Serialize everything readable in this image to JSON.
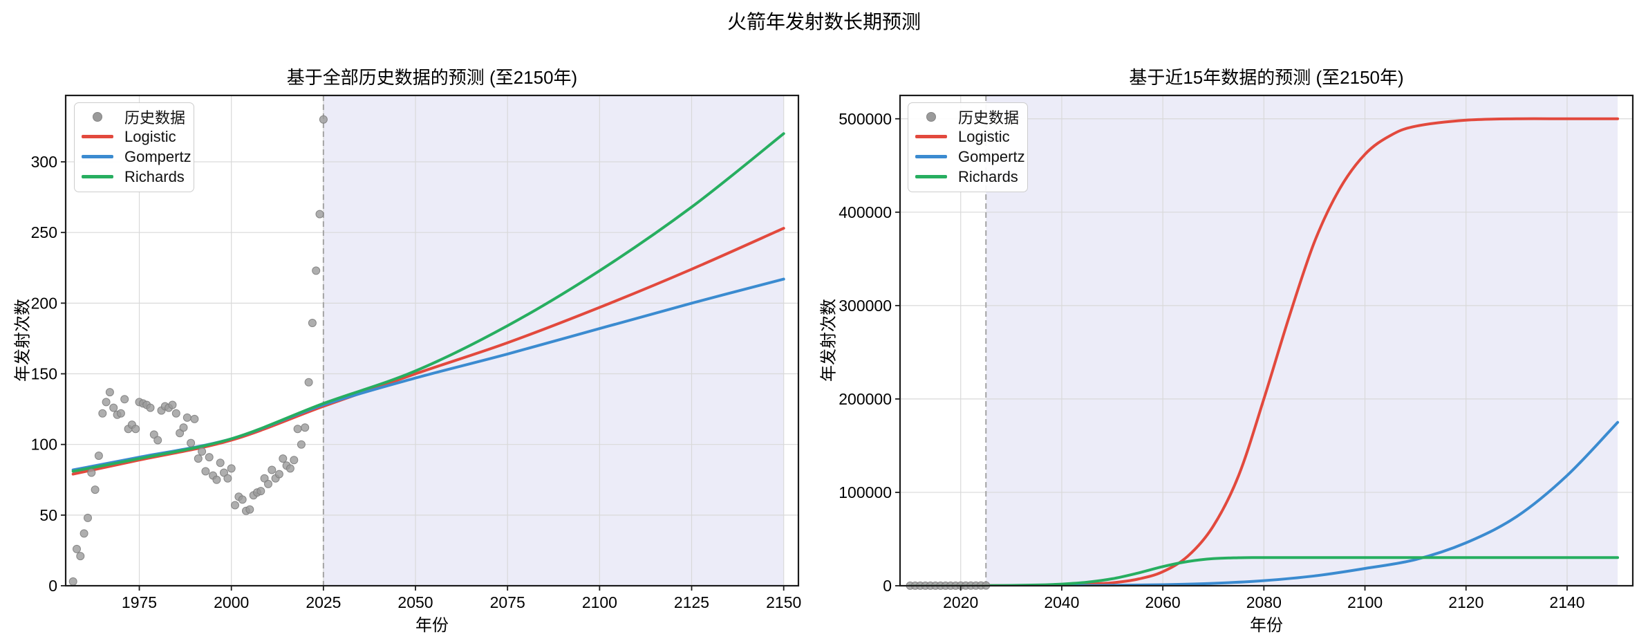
{
  "figure": {
    "title": "火箭年发射数长期预测"
  },
  "chart_data": [
    {
      "type": "line",
      "title": "基于全部历史数据的预测 (至2150年)",
      "xlabel": "年份",
      "ylabel": "年发射次数",
      "xlim": [
        1955,
        2154
      ],
      "ylim": [
        0,
        347
      ],
      "xticks": [
        1975,
        2000,
        2025,
        2050,
        2075,
        2100,
        2125,
        2150
      ],
      "yticks": [
        0,
        50,
        100,
        150,
        200,
        250,
        300
      ],
      "grid": true,
      "legend_position": "upper left",
      "legend_labels": [
        "历史数据",
        "Logistic",
        "Gompertz",
        "Richards"
      ],
      "forecast_shade": {
        "from": 2025,
        "to": 2150,
        "color": "#ececf8"
      },
      "vline": {
        "x": 2025,
        "color": "#a3a3a3",
        "style": "dashed"
      },
      "scatter": {
        "name": "历史数据",
        "color": "#9a9a9a",
        "x": [
          1957,
          1958,
          1959,
          1960,
          1961,
          1962,
          1963,
          1964,
          1965,
          1966,
          1967,
          1968,
          1969,
          1970,
          1971,
          1972,
          1973,
          1974,
          1975,
          1976,
          1977,
          1978,
          1979,
          1980,
          1981,
          1982,
          1983,
          1984,
          1985,
          1986,
          1987,
          1988,
          1989,
          1990,
          1991,
          1992,
          1993,
          1994,
          1995,
          1996,
          1997,
          1998,
          1999,
          2000,
          2001,
          2002,
          2003,
          2004,
          2005,
          2006,
          2007,
          2008,
          2009,
          2010,
          2011,
          2012,
          2013,
          2014,
          2015,
          2016,
          2017,
          2018,
          2019,
          2020,
          2021,
          2022,
          2023,
          2024,
          2025
        ],
        "y": [
          3,
          26,
          21,
          37,
          48,
          80,
          68,
          92,
          122,
          130,
          137,
          126,
          121,
          122,
          132,
          111,
          114,
          111,
          130,
          129,
          128,
          126,
          107,
          103,
          124,
          127,
          126,
          128,
          122,
          108,
          112,
          119,
          101,
          118,
          90,
          95,
          81,
          91,
          78,
          75,
          87,
          80,
          76,
          83,
          57,
          63,
          61,
          53,
          54,
          64,
          66,
          67,
          76,
          72,
          82,
          76,
          79,
          90,
          85,
          83,
          89,
          111,
          100,
          112,
          144,
          186,
          223,
          263,
          330
        ]
      },
      "series": [
        {
          "name": "Logistic",
          "color": "#e2493d",
          "x": [
            1957,
            1975,
            2000,
            2025,
            2050,
            2075,
            2100,
            2125,
            2150
          ],
          "y": [
            79,
            89,
            103,
            127,
            150,
            172,
            197,
            224,
            253
          ]
        },
        {
          "name": "Gompertz",
          "color": "#3b8bd0",
          "x": [
            1957,
            1975,
            2000,
            2025,
            2050,
            2075,
            2100,
            2125,
            2150
          ],
          "y": [
            82,
            91,
            104,
            128,
            147,
            164,
            182,
            200,
            217
          ]
        },
        {
          "name": "Richards",
          "color": "#27ae60",
          "x": [
            1957,
            1975,
            2000,
            2025,
            2050,
            2075,
            2100,
            2125,
            2150
          ],
          "y": [
            81,
            90,
            104,
            129,
            152,
            184,
            223,
            268,
            320
          ]
        }
      ]
    },
    {
      "type": "line",
      "title": "基于近15年数据的预测 (至2150年)",
      "xlabel": "年份",
      "ylabel": "年发射次数",
      "xlim": [
        2008,
        2153
      ],
      "ylim": [
        0,
        525000
      ],
      "xticks": [
        2020,
        2040,
        2060,
        2080,
        2100,
        2120,
        2140
      ],
      "yticks": [
        0,
        100000,
        200000,
        300000,
        400000,
        500000
      ],
      "grid": true,
      "legend_position": "upper left",
      "legend_labels": [
        "历史数据",
        "Logistic",
        "Gompertz",
        "Richards"
      ],
      "forecast_shade": {
        "from": 2025,
        "to": 2150,
        "color": "#ececf8"
      },
      "vline": {
        "x": 2025,
        "color": "#a3a3a3",
        "style": "dashed"
      },
      "scatter": {
        "name": "历史数据",
        "color": "#9a9a9a",
        "x": [
          2010,
          2011,
          2012,
          2013,
          2014,
          2015,
          2016,
          2017,
          2018,
          2019,
          2020,
          2021,
          2022,
          2023,
          2024,
          2025
        ],
        "y": [
          72,
          82,
          76,
          79,
          90,
          85,
          83,
          89,
          111,
          100,
          112,
          144,
          186,
          223,
          263,
          330
        ]
      },
      "series": [
        {
          "name": "Logistic",
          "color": "#e2493d",
          "x": [
            2010,
            2025,
            2035,
            2045,
            2050,
            2055,
            2060,
            2065,
            2070,
            2075,
            2080,
            2085,
            2090,
            2095,
            2100,
            2105,
            2110,
            2120,
            2130,
            2140,
            2150
          ],
          "y": [
            30,
            120,
            400,
            1800,
            3200,
            7000,
            15000,
            32000,
            64000,
            118000,
            200000,
            288000,
            368000,
            425000,
            462000,
            482000,
            492000,
            498500,
            500000,
            500000,
            500000
          ]
        },
        {
          "name": "Gompertz",
          "color": "#3b8bd0",
          "x": [
            2010,
            2025,
            2040,
            2050,
            2060,
            2070,
            2080,
            2090,
            2100,
            2110,
            2120,
            2130,
            2140,
            2150
          ],
          "y": [
            5,
            30,
            150,
            450,
            1100,
            2600,
            5500,
            10500,
            18500,
            28000,
            46000,
            74000,
            118000,
            175000
          ]
        },
        {
          "name": "Richards",
          "color": "#27ae60",
          "x": [
            2010,
            2025,
            2030,
            2035,
            2040,
            2045,
            2050,
            2055,
            2060,
            2065,
            2070,
            2075,
            2080,
            2100,
            2125,
            2150
          ],
          "y": [
            5,
            150,
            350,
            800,
            1800,
            3800,
            7500,
            13500,
            20500,
            26000,
            29000,
            30000,
            30200,
            30200,
            30200,
            30200
          ]
        }
      ]
    }
  ]
}
